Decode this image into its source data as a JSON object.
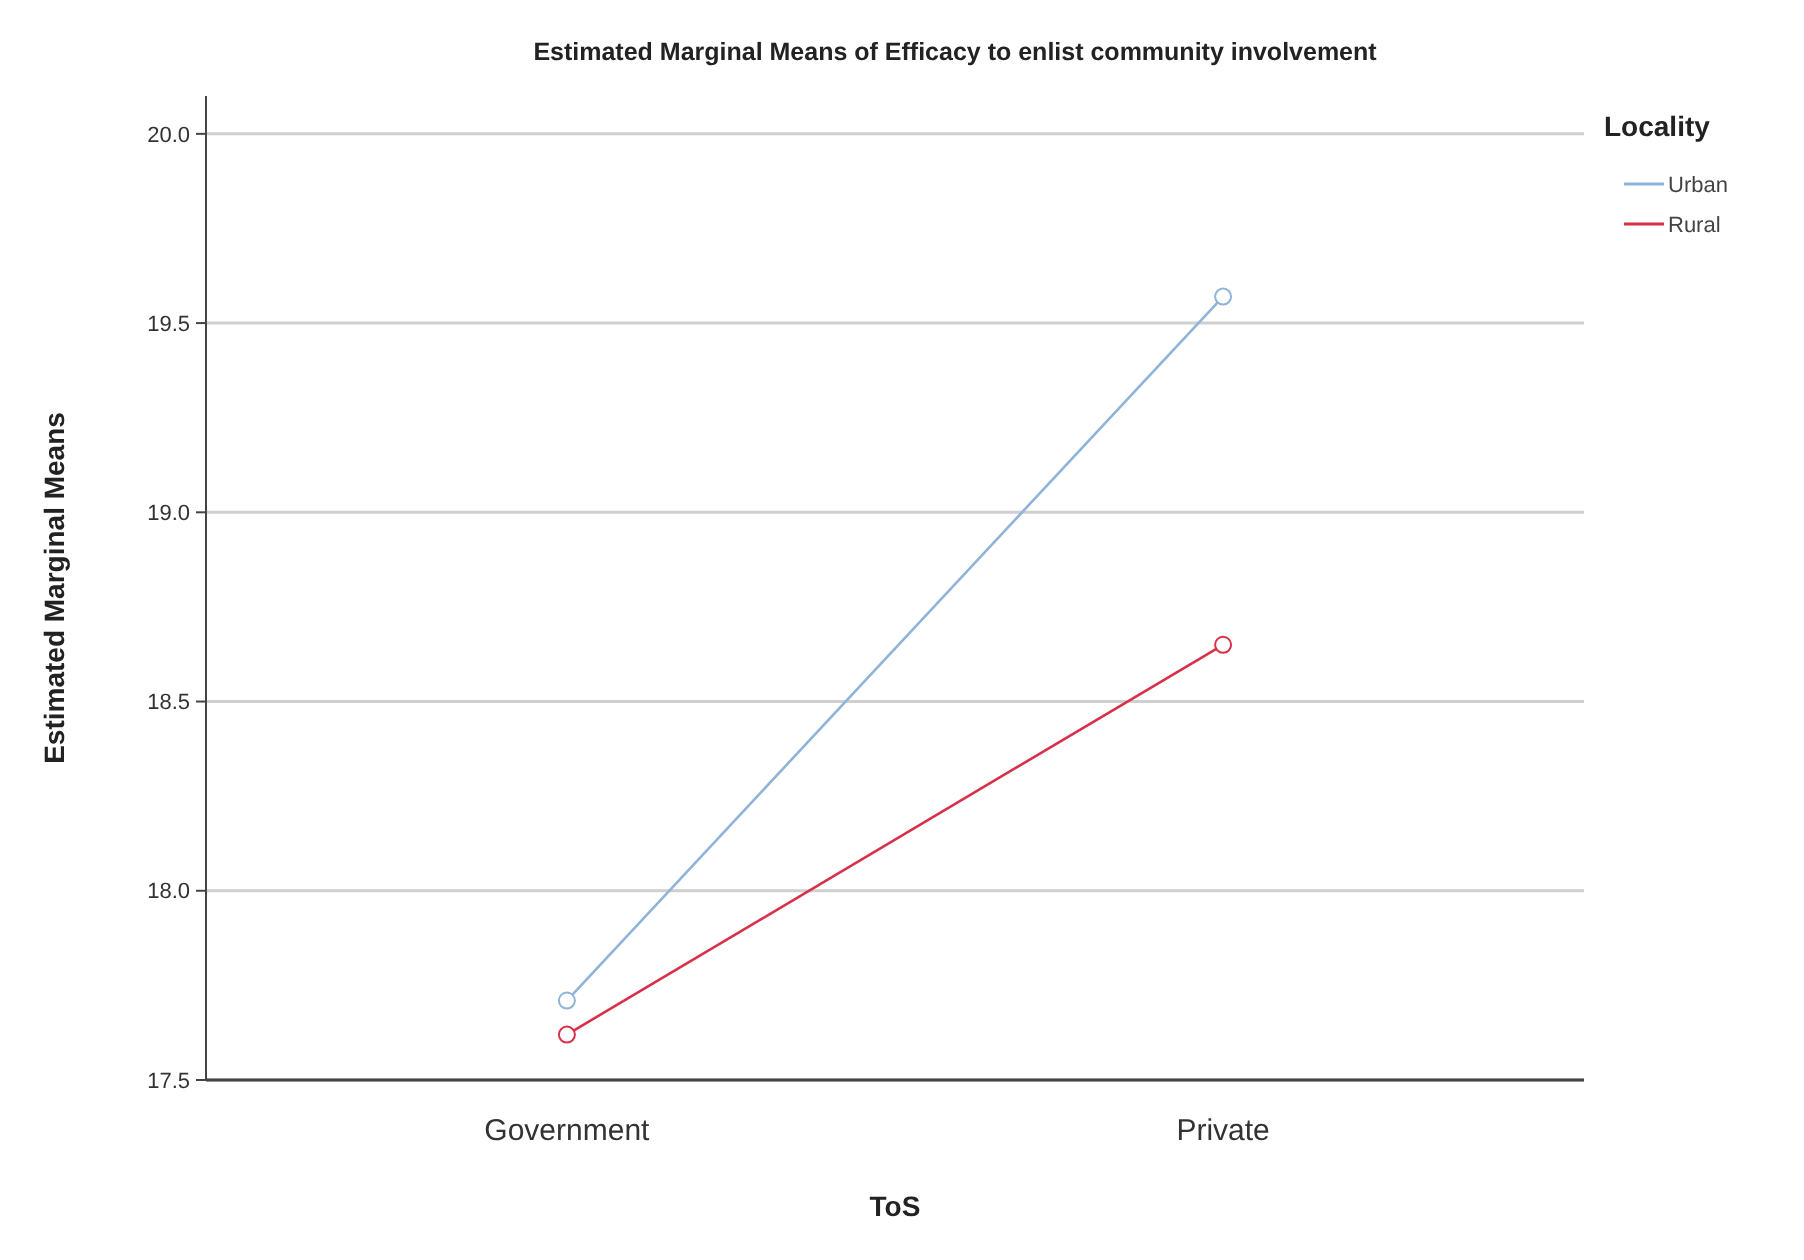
{
  "chart_data": {
    "type": "line",
    "title": "Estimated Marginal Means of Efficacy to enlist community involvement",
    "xlabel": "ToS",
    "ylabel": "Estimated Marginal Means",
    "legend_title": "Locality",
    "categories": [
      "Government",
      "Private"
    ],
    "series": [
      {
        "name": "Urban",
        "color": "#8fb3d9",
        "values": [
          17.71,
          19.57
        ]
      },
      {
        "name": "Rural",
        "color": "#d9304a",
        "values": [
          17.62,
          18.65
        ]
      }
    ],
    "ylim": [
      17.5,
      20.1
    ],
    "yticks": [
      {
        "value": 17.5,
        "label": "17.5"
      },
      {
        "value": 18.0,
        "label": "18.0"
      },
      {
        "value": 18.5,
        "label": "18.5"
      },
      {
        "value": 19.0,
        "label": "19.0"
      },
      {
        "value": 19.5,
        "label": "19.5"
      },
      {
        "value": 20.0,
        "label": "20.0"
      }
    ],
    "grid": "y",
    "legend": "top right",
    "marker": "circle",
    "line_style": "solid"
  }
}
